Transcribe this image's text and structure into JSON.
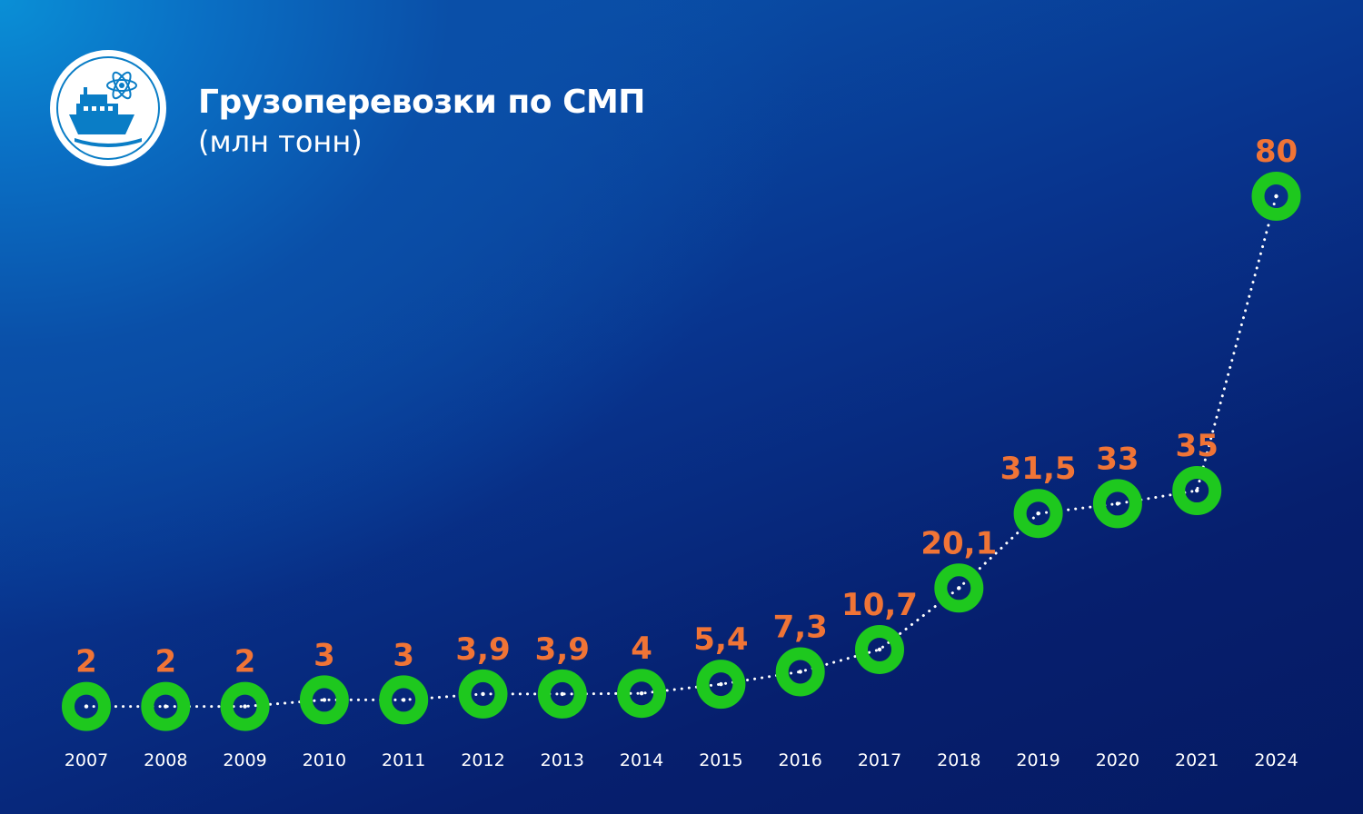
{
  "header": {
    "title": "Грузоперевозки по СМП",
    "subtitle": "(млн тонн)"
  },
  "colors": {
    "marker": "#1ec81e",
    "value_label": "#f07436",
    "line": "#ffffff",
    "text": "#ffffff",
    "background": "#062a7d"
  },
  "chart_data": {
    "type": "line",
    "title": "Грузоперевозки по СМП",
    "subtitle": "(млн тонн)",
    "categories": [
      "2007",
      "2008",
      "2009",
      "2010",
      "2011",
      "2012",
      "2013",
      "2014",
      "2015",
      "2016",
      "2017",
      "2018",
      "2019",
      "2020",
      "2021",
      "2024"
    ],
    "values": [
      2,
      2,
      2,
      3,
      3,
      3.9,
      3.9,
      4,
      5.4,
      7.3,
      10.7,
      20.1,
      31.5,
      33,
      35,
      80
    ],
    "value_labels": [
      "2",
      "2",
      "2",
      "3",
      "3",
      "3,9",
      "3,9",
      "4",
      "5,4",
      "7,3",
      "10,7",
      "20,1",
      "31,5",
      "33",
      "35",
      "80"
    ],
    "xlabel": "",
    "ylabel": "",
    "grid": false,
    "legend": "none",
    "line_style": "dotted",
    "marker": "ring"
  }
}
